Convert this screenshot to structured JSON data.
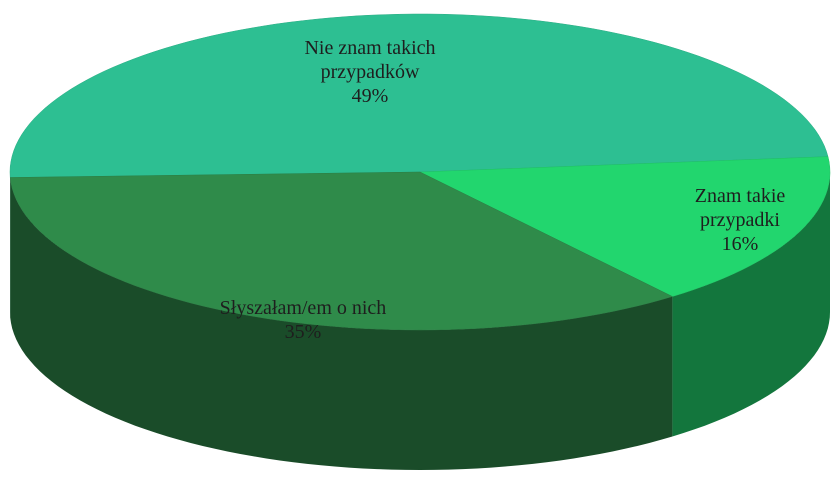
{
  "chart_data": {
    "type": "pie",
    "categories": [
      "Nie znam takich przypadków",
      "Znam takie przypadki",
      "Słyszałam/em o nich"
    ],
    "values": [
      49,
      16,
      35
    ],
    "value_labels": [
      "49%",
      "16%",
      "35%"
    ],
    "colors": [
      "#2dbf92",
      "#22d66e",
      "#2f8b4a"
    ]
  }
}
